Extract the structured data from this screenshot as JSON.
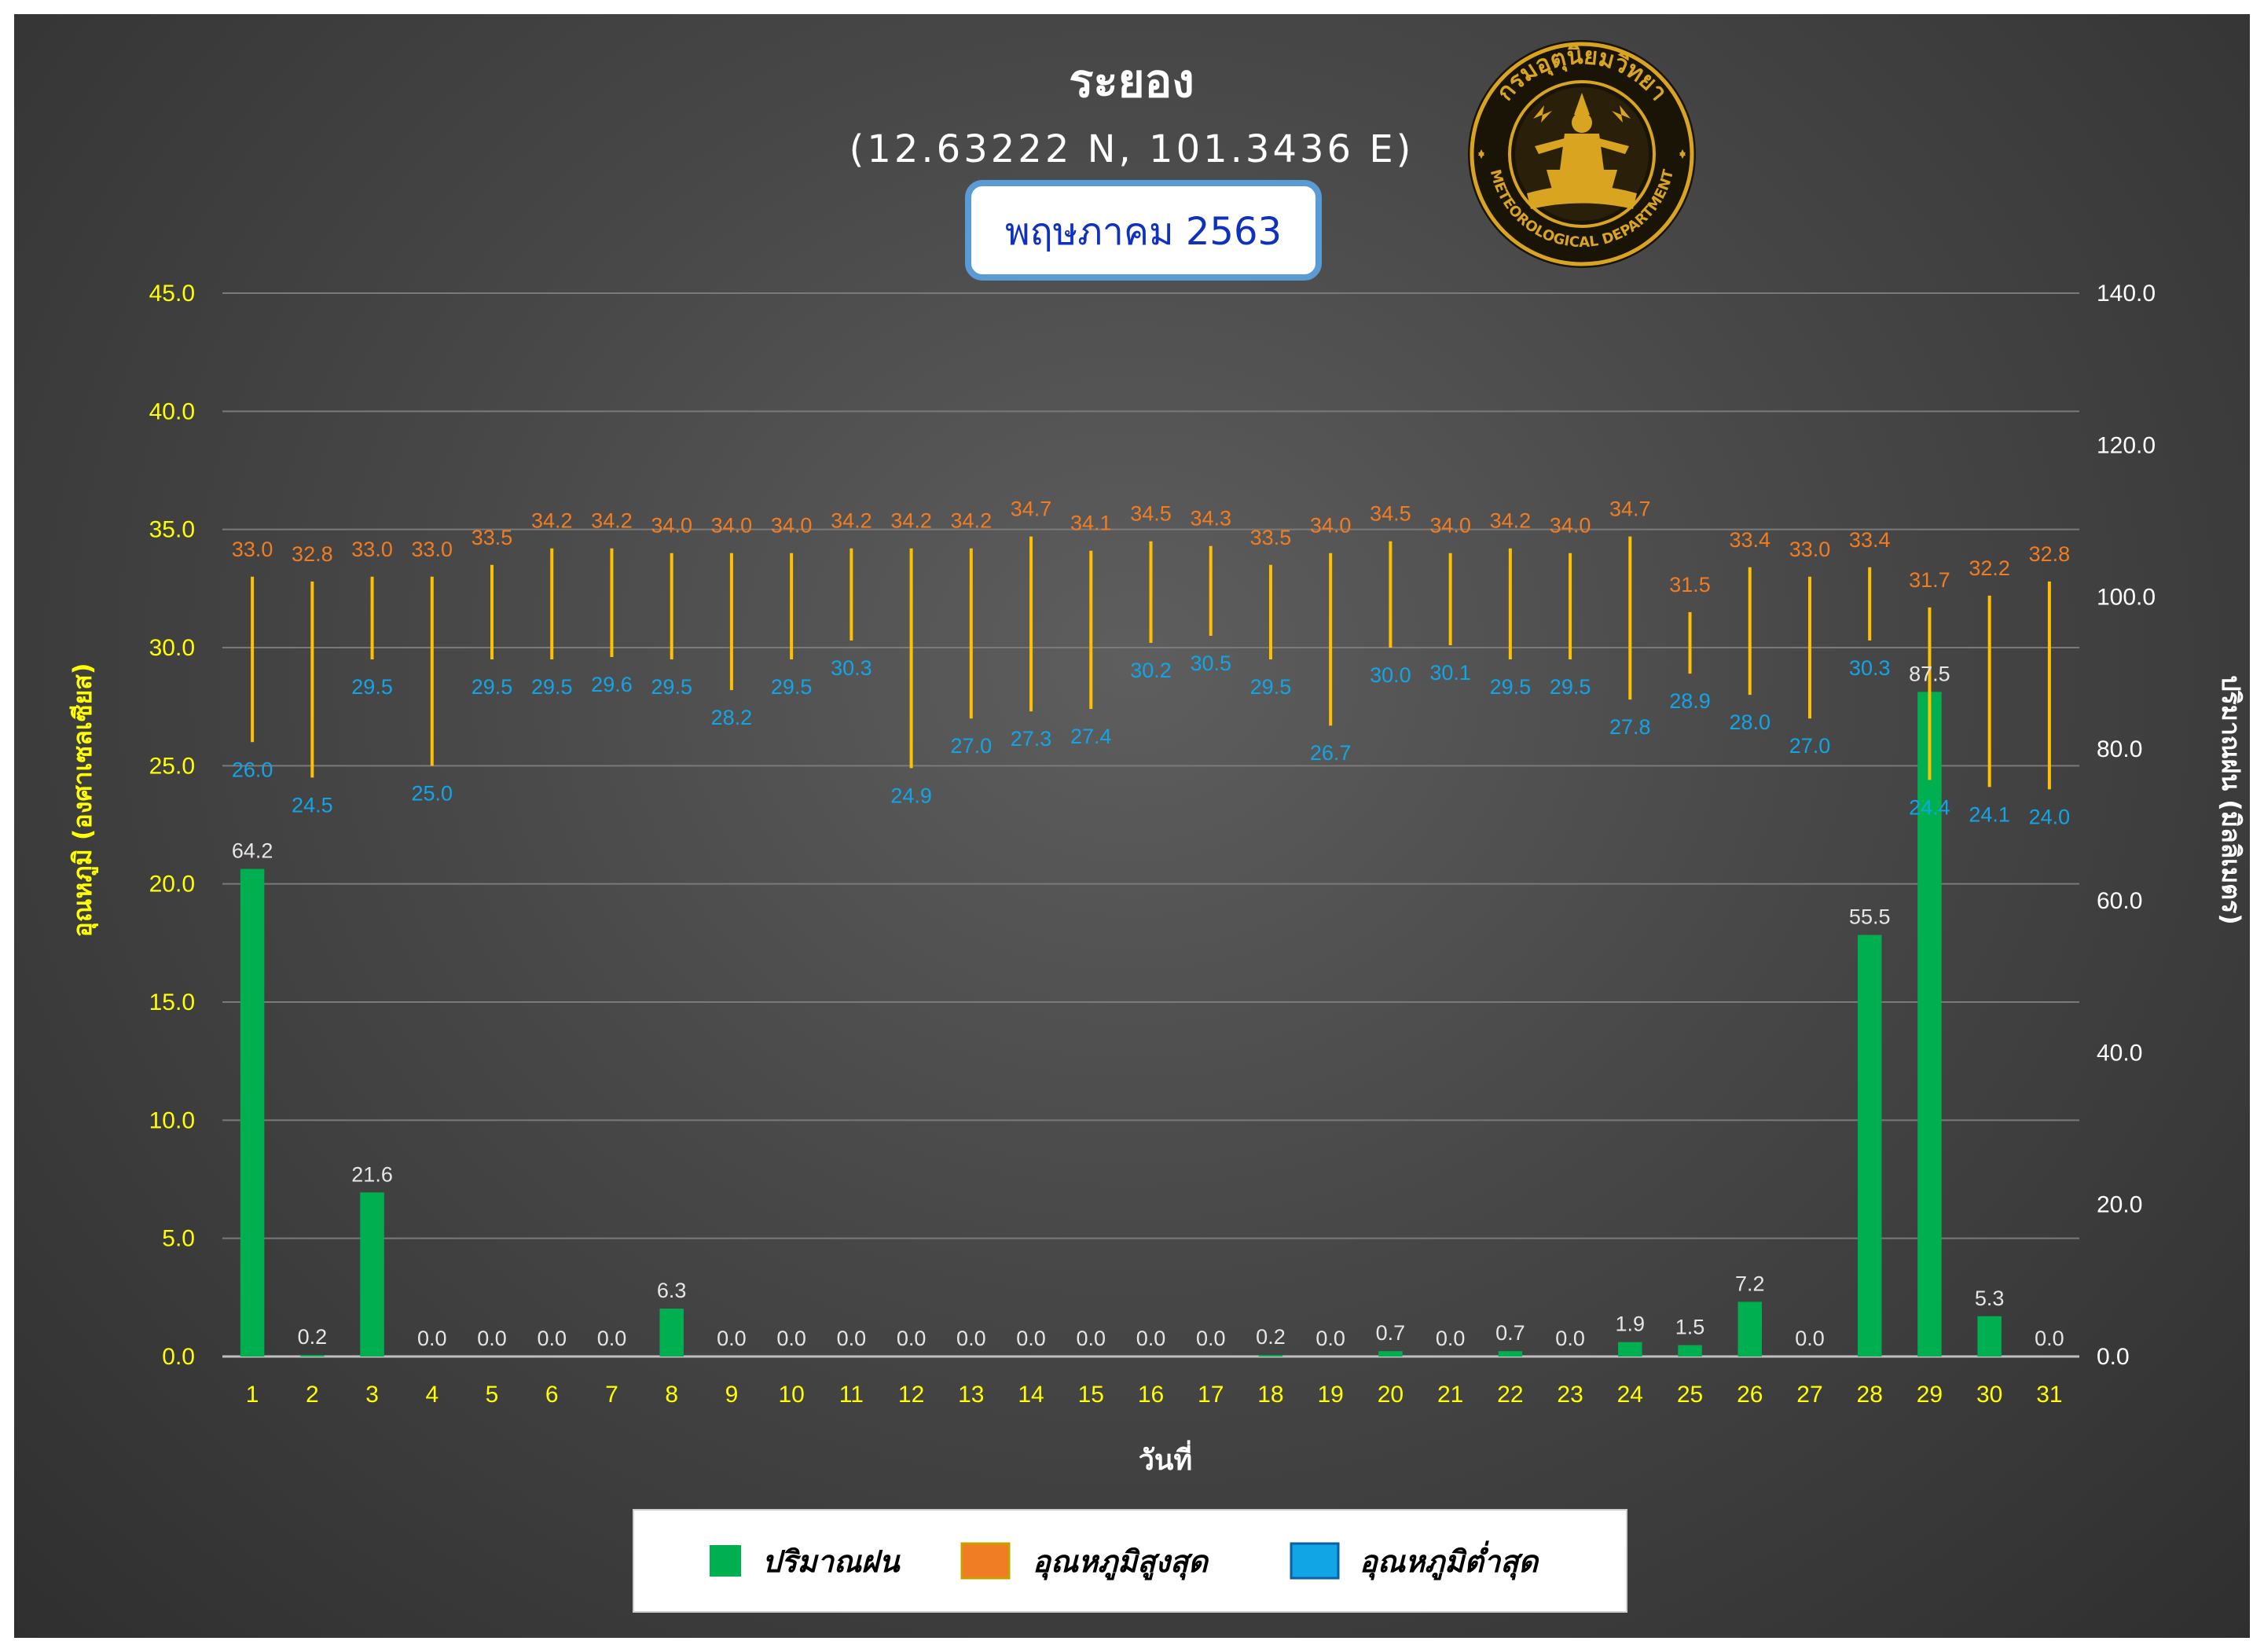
{
  "header": {
    "title": "ระยอง",
    "coordinates": "(12.63222 N, 101.3436 E)",
    "month": "พฤษภาคม 2563"
  },
  "logo": {
    "text_top": "กรมอุตุนิยมวิทยา",
    "text_bottom": "METEOROLOGICAL DEPARTMENT",
    "colors": {
      "gold": "#d9a521",
      "dark": "#1a1406"
    }
  },
  "colors": {
    "rain": "#00b050",
    "max": "#f07d23",
    "min": "#12a5e6",
    "range_line": "#ffc000",
    "grid": "#7a7a7a",
    "left_axis": "#ffff00",
    "right_axis": "#ffffff"
  },
  "legend": {
    "rain": "ปริมาณฝน",
    "max": "อุณหภูมิสูงสุด",
    "min": "อุณหภูมิต่ำสุด"
  },
  "chart_data": {
    "type": "bar",
    "title": "ระยอง",
    "xlabel": "วันที่",
    "ylabel_left": "อุณหภูมิ (องศาเซลเซียส)",
    "ylabel_right": "ปริมาณฝน (มิลลิเมตร)",
    "ylim_left": [
      0,
      45
    ],
    "ylim_right": [
      0,
      140
    ],
    "yticks_left": [
      "0.0",
      "5.0",
      "10.0",
      "15.0",
      "20.0",
      "25.0",
      "30.0",
      "35.0",
      "40.0",
      "45.0"
    ],
    "yticks_right": [
      "0.0",
      "20.0",
      "40.0",
      "60.0",
      "80.0",
      "100.0",
      "120.0",
      "140.0"
    ],
    "grid": true,
    "legend_position": "bottom",
    "categories": [
      "1",
      "2",
      "3",
      "4",
      "5",
      "6",
      "7",
      "8",
      "9",
      "10",
      "11",
      "12",
      "13",
      "14",
      "15",
      "16",
      "17",
      "18",
      "19",
      "20",
      "21",
      "22",
      "23",
      "24",
      "25",
      "26",
      "27",
      "28",
      "29",
      "30",
      "31"
    ],
    "series": [
      {
        "name": "ปริมาณฝน",
        "axis": "right",
        "values": [
          64.2,
          0.2,
          21.6,
          0.0,
          0.0,
          0.0,
          0.0,
          6.3,
          0.0,
          0.0,
          0.0,
          0.0,
          0.0,
          0.0,
          0.0,
          0.0,
          0.0,
          0.2,
          0.0,
          0.7,
          0.0,
          0.7,
          0.0,
          1.9,
          1.5,
          7.2,
          0.0,
          55.5,
          87.5,
          5.3,
          0.0
        ]
      },
      {
        "name": "อุณหภูมิสูงสุด",
        "axis": "left",
        "values": [
          33.0,
          32.8,
          33.0,
          33.0,
          33.5,
          34.2,
          34.2,
          34.0,
          34.0,
          34.0,
          34.2,
          34.2,
          34.2,
          34.7,
          34.1,
          34.5,
          34.3,
          33.5,
          34.0,
          34.5,
          34.0,
          34.2,
          34.0,
          34.7,
          31.5,
          33.4,
          33.0,
          33.4,
          31.7,
          32.2,
          32.8
        ]
      },
      {
        "name": "อุณหภูมิต่ำสุด",
        "axis": "left",
        "values": [
          26.0,
          24.5,
          29.5,
          25.0,
          29.5,
          29.5,
          29.6,
          29.5,
          28.2,
          29.5,
          30.3,
          24.9,
          27.0,
          27.3,
          27.4,
          30.2,
          30.5,
          29.5,
          26.7,
          30.0,
          30.1,
          29.5,
          29.5,
          27.8,
          28.9,
          28.0,
          27.0,
          30.3,
          24.4,
          24.1,
          24.0
        ]
      }
    ]
  }
}
